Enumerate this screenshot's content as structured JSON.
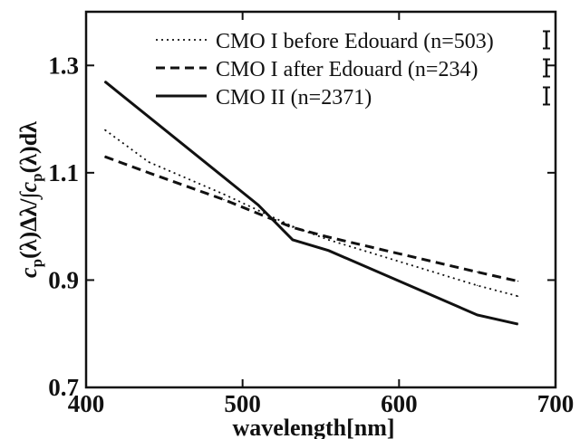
{
  "chart_data": {
    "type": "line",
    "title": "",
    "xlabel": "wavelength[nm]",
    "ylabel": "c_p(λ)Δλ/∫c_p(λ)dλ",
    "ylabel_parts": {
      "c": "c",
      "sub": "p",
      "mid": "(λ)Δλ/∫",
      "c2": "c",
      "sub2": "p",
      "end": "(λ)dλ"
    },
    "xlim": [
      400,
      700
    ],
    "ylim": [
      0.7,
      1.4
    ],
    "xticks": [
      400,
      500,
      600,
      700
    ],
    "xtick_labels": [
      "400",
      "500",
      "600",
      "700"
    ],
    "yticks": [
      0.7,
      0.9,
      1.1,
      1.3
    ],
    "ytick_labels": [
      "0.7",
      "0.9",
      "1.1",
      "1.3"
    ],
    "grid": false,
    "legend_position": "top-right",
    "series": [
      {
        "name": "CMO I before Edouard (n=503)",
        "style": "dotted",
        "color": "#111111",
        "x": [
          412,
          440,
          488,
          532,
          555,
          650,
          676
        ],
        "y": [
          1.18,
          1.12,
          1.06,
          1.0,
          0.975,
          0.89,
          0.87
        ],
        "error_bar_half": 0.016
      },
      {
        "name": "CMO I after Edouard (n=234)",
        "style": "dashed",
        "color": "#111111",
        "x": [
          412,
          440,
          488,
          532,
          555,
          650,
          676
        ],
        "y": [
          1.13,
          1.1,
          1.05,
          0.998,
          0.98,
          0.915,
          0.898
        ],
        "error_bar_half": 0.016
      },
      {
        "name": "CMO II (n=2371)",
        "style": "solid",
        "color": "#111111",
        "x": [
          412,
          510,
          532,
          555,
          650,
          676
        ],
        "y": [
          1.27,
          1.04,
          0.975,
          0.955,
          0.835,
          0.818
        ],
        "error_bar_half": 0.016
      }
    ]
  }
}
